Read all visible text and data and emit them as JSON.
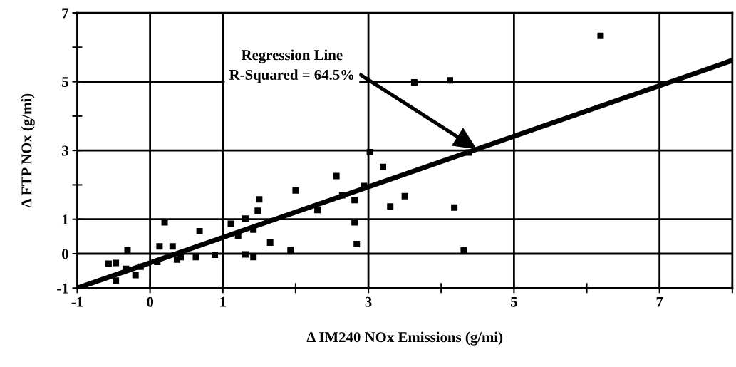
{
  "chart_data": {
    "type": "scatter",
    "xlabel": "Δ IM240 NOx Emissions (g/mi)",
    "ylabel": "Δ FTP NOx (g/mi)",
    "xlim": [
      -1,
      8
    ],
    "ylim": [
      -1,
      7
    ],
    "xticks": [
      -1,
      0,
      1,
      {
        "value": 2,
        "label": null
      },
      3,
      {
        "value": 4,
        "label": null
      },
      5,
      {
        "value": 6,
        "label": null
      },
      7,
      {
        "value": 8,
        "label": null
      }
    ],
    "yticks": [
      -1,
      0,
      1,
      {
        "value": 2,
        "label": null
      },
      3,
      {
        "value": 4,
        "label": null
      },
      5,
      {
        "value": 6,
        "label": null
      },
      7
    ],
    "grid": true,
    "annotations": [
      "Regression Line\nR-Squared = 64.5%"
    ],
    "series": [
      {
        "color": "#000000",
        "marker": "square",
        "x": [
          -0.57,
          -0.47,
          -0.31,
          -0.47,
          -0.33,
          -0.2,
          -0.13,
          0.1,
          0.13,
          0.2,
          0.31,
          0.37,
          0.42,
          0.63,
          0.68,
          0.89,
          1.11,
          1.21,
          1.31,
          1.31,
          1.42,
          1.42,
          1.48,
          1.5,
          1.65,
          1.93,
          2.0,
          2.3,
          2.56,
          2.64,
          2.81,
          2.81,
          2.84,
          2.94,
          3.02,
          3.2,
          3.3,
          3.5,
          3.63,
          4.12,
          4.18,
          4.38,
          4.31,
          6.19
        ],
        "values": [
          -0.29,
          -0.27,
          0.11,
          -0.78,
          -0.44,
          -0.62,
          -0.38,
          -0.24,
          0.21,
          0.91,
          0.21,
          -0.17,
          -0.1,
          -0.1,
          0.65,
          -0.03,
          0.87,
          0.53,
          1.02,
          -0.02,
          0.7,
          -0.1,
          1.25,
          1.58,
          0.32,
          0.11,
          1.84,
          1.27,
          2.26,
          1.7,
          1.56,
          0.91,
          0.28,
          1.97,
          2.95,
          2.52,
          1.37,
          1.67,
          4.98,
          5.04,
          1.34,
          2.94,
          0.1,
          6.33
        ]
      },
      {
        "type": "line",
        "color": "#000000",
        "x": [
          -1,
          8
        ],
        "values": [
          -1.0,
          5.62
        ]
      }
    ]
  }
}
